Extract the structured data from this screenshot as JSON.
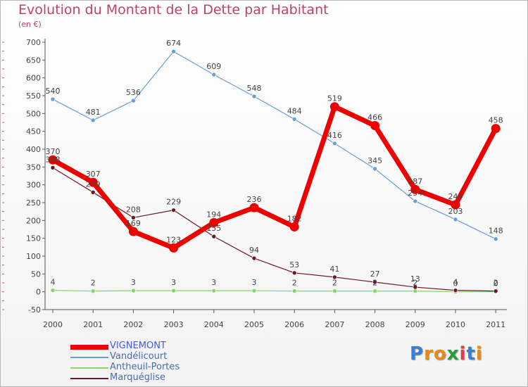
{
  "title": "Evolution du Montant de la Dette par Habitant",
  "subtitle": "(en €)",
  "colors": {
    "title": "#c0406a",
    "VIGNEMONT": "#ee0000",
    "Vandélicourt": "#6a9fd4",
    "Antheuil-Portes": "#88d46a",
    "Marquéglise": "#6a1a24"
  },
  "chart_data": {
    "type": "line",
    "title": "Evolution du Montant de la Dette par Habitant",
    "ylabel": "(en €)",
    "x": [
      "2000",
      "2001",
      "2002",
      "2003",
      "2004",
      "2005",
      "2006",
      "2007",
      "2008",
      "2009",
      "2010",
      "2011"
    ],
    "ylim": [
      -50,
      700
    ],
    "yticks": [
      -50,
      0,
      50,
      100,
      150,
      200,
      250,
      300,
      350,
      400,
      450,
      500,
      550,
      600,
      650,
      700
    ],
    "grid": false,
    "legend": "bottom-left",
    "series": [
      {
        "name": "VIGNEMONT",
        "values": [
          370,
          307,
          169,
          123,
          194,
          236,
          182,
          519,
          466,
          287,
          244,
          458
        ]
      },
      {
        "name": "Vandélicourt",
        "values": [
          540,
          481,
          536,
          674,
          609,
          548,
          484,
          416,
          345,
          254,
          203,
          148
        ]
      },
      {
        "name": "Antheuil-Portes",
        "values": [
          4,
          2,
          3,
          3,
          3,
          3,
          2,
          2,
          2,
          2,
          0,
          0
        ]
      },
      {
        "name": "Marquéglise",
        "values": [
          348,
          279,
          208,
          229,
          155,
          94,
          53,
          41,
          27,
          13,
          4,
          2
        ]
      }
    ]
  },
  "legend": [
    "VIGNEMONT",
    "Vandélicourt",
    "Antheuil-Portes",
    "Marquéglise"
  ],
  "logo": {
    "letters": [
      "P",
      "r",
      "o",
      "x",
      "i",
      "t",
      "i"
    ],
    "colors": [
      "#3a7fd0",
      "#e88a1a",
      "#e88a1a",
      "#2a9a3a",
      "#e04040",
      "#3a7fd0",
      "#e88a1a"
    ]
  }
}
